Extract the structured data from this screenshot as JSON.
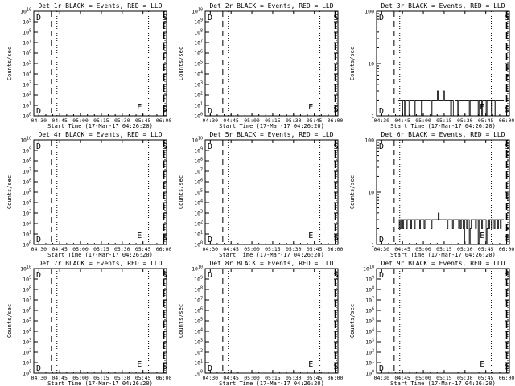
{
  "time_ticks": [
    "04:30",
    "04:45",
    "05:00",
    "05:15",
    "05:30",
    "05:45",
    "06:00"
  ],
  "xlabel": "Start Time (17-Mar-17 04:26:20)",
  "ylabel": "Counts/sec",
  "markers": {
    "left": "D",
    "mid": "E",
    "right": "S"
  },
  "chart_data": [
    {
      "type": "line",
      "title": "Det 1r BLACK = Events, RED = LLD",
      "ylog": true,
      "ylim": [
        1,
        10000000000
      ],
      "yticks": [
        "10^0",
        "10^1",
        "10^2",
        "10^3",
        "10^4",
        "10^5",
        "10^6",
        "10^7",
        "10^8",
        "10^9",
        "10^10"
      ],
      "xlabel": "Start Time (17-Mar-17 04:26:20)",
      "ylabel": "Counts/sec",
      "series": []
    },
    {
      "type": "line",
      "title": "Det 2r BLACK = Events, RED = LLD",
      "ylog": true,
      "ylim": [
        1,
        10000000000
      ],
      "yticks": [
        "10^0",
        "10^1",
        "10^2",
        "10^3",
        "10^4",
        "10^5",
        "10^6",
        "10^7",
        "10^8",
        "10^9",
        "10^10"
      ],
      "xlabel": "Start Time (17-Mar-17 04:26:20)",
      "ylabel": "Counts/sec",
      "series": []
    },
    {
      "type": "line",
      "title": "Det 3r BLACK = Events, RED = LLD",
      "ylog": true,
      "ylim": [
        1,
        100
      ],
      "yticks": [
        "1",
        "10",
        "100"
      ],
      "xlabel": "Start Time (17-Mar-17 04:26:20)",
      "ylabel": "Counts/sec",
      "series": [
        {
          "color": "#000000",
          "x_start": "04:42",
          "x_end": "05:58",
          "values": [
            2,
            2,
            2,
            2,
            1,
            2,
            2,
            1,
            2,
            2,
            2,
            2,
            1,
            2,
            2,
            2,
            2,
            2,
            1,
            2,
            2,
            2,
            2,
            2,
            2,
            2,
            1,
            2,
            2,
            2,
            2,
            2,
            2,
            2,
            2,
            2,
            2,
            1,
            2,
            2,
            2,
            2,
            2,
            2,
            3,
            2,
            2,
            2,
            2,
            2,
            2,
            3,
            2,
            2,
            2,
            2,
            2,
            2,
            2,
            1,
            2,
            2,
            1,
            1,
            2,
            2,
            2,
            1,
            2,
            2,
            2,
            2,
            2,
            2,
            2,
            2,
            2,
            2,
            2,
            2,
            1,
            2,
            2,
            2,
            2,
            2,
            2,
            2,
            2,
            2,
            1,
            2,
            2,
            2,
            1,
            2,
            2,
            2,
            2,
            1,
            2,
            2,
            2,
            2,
            2,
            1,
            2,
            2,
            2,
            1,
            2,
            2,
            2,
            2,
            2,
            2,
            2,
            2,
            2,
            2
          ]
        }
      ]
    },
    {
      "type": "line",
      "title": "Det 4r BLACK = Events, RED = LLD",
      "ylog": true,
      "ylim": [
        1,
        10000000000
      ],
      "yticks": [
        "10^0",
        "10^1",
        "10^2",
        "10^3",
        "10^4",
        "10^5",
        "10^6",
        "10^7",
        "10^8",
        "10^9",
        "10^10"
      ],
      "xlabel": "Start Time (17-Mar-17 04:26:20)",
      "ylabel": "Counts/sec",
      "series": []
    },
    {
      "type": "line",
      "title": "Det 5r BLACK = Events, RED = LLD",
      "ylog": true,
      "ylim": [
        1,
        10000000000
      ],
      "yticks": [
        "10^0",
        "10^1",
        "10^2",
        "10^3",
        "10^4",
        "10^5",
        "10^6",
        "10^7",
        "10^8",
        "10^9",
        "10^10"
      ],
      "xlabel": "Start Time (17-Mar-17 04:26:20)",
      "ylabel": "Counts/sec",
      "series": []
    },
    {
      "type": "line",
      "title": "Det 6r BLACK = Events, RED = LLD",
      "ylog": true,
      "ylim": [
        1,
        100
      ],
      "yticks": [
        "1",
        "10",
        "100"
      ],
      "xlabel": "Start Time (17-Mar-17 04:26:20)",
      "ylabel": "Counts/sec",
      "series": [
        {
          "color": "#000000",
          "x_start": "04:42",
          "x_end": "05:58",
          "values": [
            2,
            3,
            2,
            3,
            3,
            2,
            3,
            3,
            3,
            2,
            3,
            3,
            3,
            3,
            2,
            3,
            3,
            3,
            2,
            3,
            3,
            3,
            3,
            3,
            2,
            3,
            3,
            3,
            3,
            2,
            3,
            3,
            3,
            3,
            3,
            3,
            3,
            2,
            3,
            3,
            3,
            3,
            3,
            3,
            3,
            4,
            3,
            3,
            3,
            3,
            3,
            3,
            3,
            3,
            3,
            2,
            3,
            3,
            3,
            3,
            3,
            2,
            3,
            3,
            3,
            3,
            3,
            3,
            2,
            3,
            2,
            3,
            3,
            2,
            1,
            3,
            3,
            2,
            3,
            3,
            1,
            2,
            3,
            3,
            3,
            3,
            3,
            2,
            3,
            3,
            1,
            3,
            3,
            3,
            2,
            3,
            3,
            3,
            3,
            1,
            2,
            3,
            2,
            3,
            3,
            2,
            3,
            3,
            2,
            3,
            3,
            3,
            2,
            3,
            3,
            2,
            3,
            3,
            3,
            3
          ]
        }
      ]
    },
    {
      "type": "line",
      "title": "Det 7r BLACK = Events, RED = LLD",
      "ylog": true,
      "ylim": [
        1,
        10000000000
      ],
      "yticks": [
        "10^0",
        "10^1",
        "10^2",
        "10^3",
        "10^4",
        "10^5",
        "10^6",
        "10^7",
        "10^8",
        "10^9",
        "10^10"
      ],
      "xlabel": "Start Time (17-Mar-17 04:26:20)",
      "ylabel": "Counts/sec",
      "series": []
    },
    {
      "type": "line",
      "title": "Det 8r BLACK = Events, RED = LLD",
      "ylog": true,
      "ylim": [
        1,
        10000000000
      ],
      "yticks": [
        "10^0",
        "10^1",
        "10^2",
        "10^3",
        "10^4",
        "10^5",
        "10^6",
        "10^7",
        "10^8",
        "10^9",
        "10^10"
      ],
      "xlabel": "Start Time (17-Mar-17 04:26:20)",
      "ylabel": "Counts/sec",
      "series": []
    },
    {
      "type": "line",
      "title": "Det 9r BLACK = Events, RED = LLD",
      "ylog": true,
      "ylim": [
        1,
        10000000000
      ],
      "yticks": [
        "10^0",
        "10^1",
        "10^2",
        "10^3",
        "10^4",
        "10^5",
        "10^6",
        "10^7",
        "10^8",
        "10^9",
        "10^10"
      ],
      "xlabel": "Start Time (17-Mar-17 04:26:20)",
      "ylabel": "Counts/sec",
      "series": []
    }
  ]
}
